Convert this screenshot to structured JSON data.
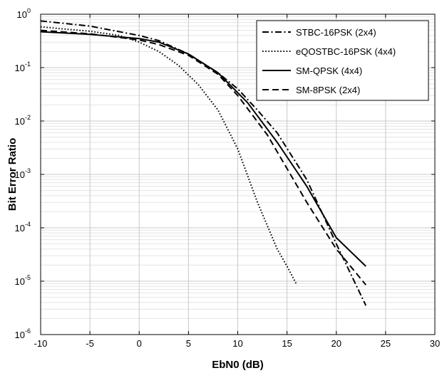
{
  "chart_data": {
    "type": "line",
    "title": "",
    "xlabel": "EbN0 (dB)",
    "ylabel": "Bit Error Ratio",
    "xlim": [
      -10,
      30
    ],
    "ylim": [
      1e-06,
      1
    ],
    "yscale": "log",
    "grid": true,
    "legend_position": "top-right",
    "x_ticks": [
      "-10",
      "-5",
      "0",
      "5",
      "10",
      "15",
      "20",
      "25",
      "30"
    ],
    "y_ticks": [
      {
        "base": "10",
        "exp": "0"
      },
      {
        "base": "10",
        "exp": "-1"
      },
      {
        "base": "10",
        "exp": "-2"
      },
      {
        "base": "10",
        "exp": "-3"
      },
      {
        "base": "10",
        "exp": "-4"
      },
      {
        "base": "10",
        "exp": "-5"
      },
      {
        "base": "10",
        "exp": "-6"
      }
    ],
    "series": [
      {
        "name": "STBC-16PSK (2x4)",
        "line_style": "dashdot",
        "color": "#000000",
        "x": [
          -10,
          -5,
          0,
          2,
          5,
          8,
          10,
          12,
          14,
          17,
          20,
          23
        ],
        "y": [
          0.75,
          0.6,
          0.4,
          0.32,
          0.18,
          0.08,
          0.04,
          0.016,
          0.006,
          0.0008,
          5e-05,
          3.5e-06
        ]
      },
      {
        "name": "eQOSTBC-16PSK (4x4)",
        "line_style": "dotted",
        "color": "#000000",
        "x": [
          -10,
          -5,
          -2,
          0,
          2,
          4,
          6,
          8,
          10,
          12,
          14,
          15,
          16
        ],
        "y": [
          0.58,
          0.48,
          0.4,
          0.3,
          0.2,
          0.11,
          0.048,
          0.016,
          0.003,
          0.0003,
          4e-05,
          1.9e-05,
          8.5e-06
        ]
      },
      {
        "name": "SM-QPSK (4x4)",
        "line_style": "solid",
        "color": "#000000",
        "x": [
          -10,
          -5,
          0,
          2,
          5,
          8,
          11,
          14,
          17,
          20,
          23
        ],
        "y": [
          0.47,
          0.42,
          0.35,
          0.3,
          0.18,
          0.08,
          0.022,
          0.004,
          0.0006,
          6.5e-05,
          1.9e-05
        ]
      },
      {
        "name": "SM-8PSK (2x4)",
        "line_style": "dashed",
        "color": "#000000",
        "x": [
          -10,
          -5,
          0,
          2,
          5,
          8,
          10,
          13,
          17,
          20,
          23
        ],
        "y": [
          0.5,
          0.43,
          0.33,
          0.27,
          0.17,
          0.075,
          0.03,
          0.0055,
          0.0003,
          4e-05,
          8.5e-06
        ]
      }
    ]
  }
}
